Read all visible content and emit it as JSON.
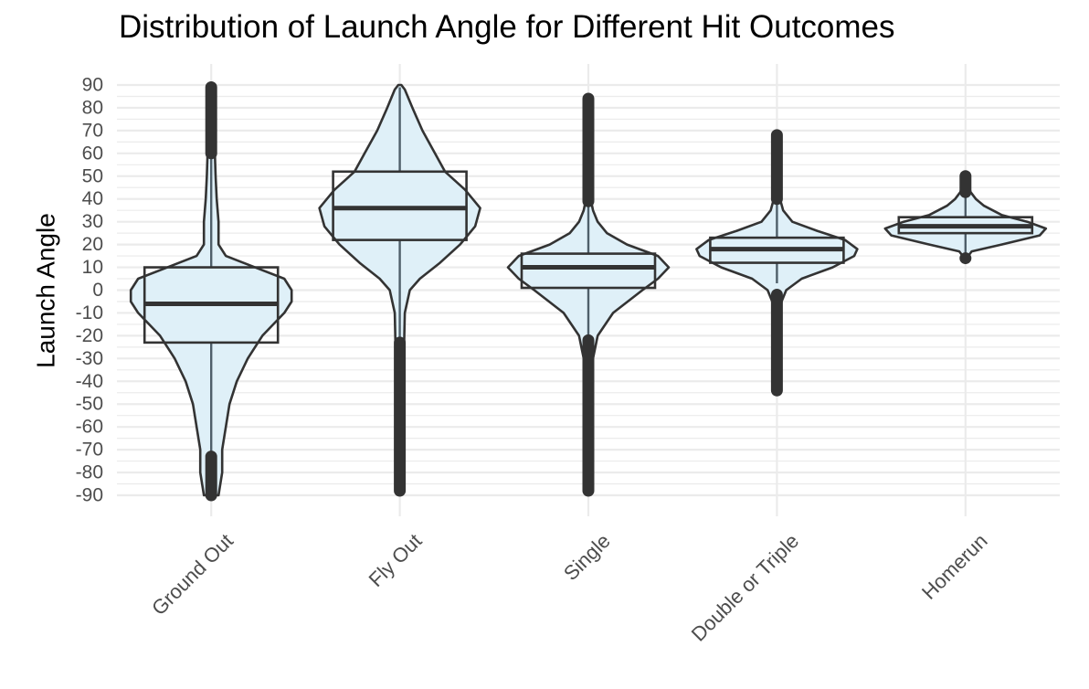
{
  "chart_data": {
    "type": "violin-box",
    "title": "Distribution of Launch Angle for Different Hit Outcomes",
    "xlabel": "",
    "ylabel": "Launch Angle",
    "ylim": [
      -90,
      90
    ],
    "yticks": [
      90,
      80,
      70,
      60,
      50,
      40,
      30,
      20,
      10,
      0,
      -10,
      -20,
      -30,
      -40,
      -50,
      -60,
      -70,
      -80,
      -90
    ],
    "grid": true,
    "colors": {
      "violin_fill": "#dff0f8",
      "outline": "#333333",
      "grid": "#ebebeb",
      "tick": "#4d4d4d"
    },
    "categories": [
      "Ground Out",
      "Fly Out",
      "Single",
      "Double or Triple",
      "Homerun"
    ],
    "boxes": [
      {
        "category": "Ground Out",
        "q1": -23,
        "median": -6,
        "q3": 10,
        "whisker_low": -72,
        "whisker_high": 60,
        "outliers_low": [
          -73,
          -90
        ],
        "outliers_high": [
          60,
          89
        ]
      },
      {
        "category": "Fly Out",
        "q1": 22,
        "median": 36,
        "q3": 52,
        "whisker_low": -22,
        "whisker_high": 89,
        "outliers_low": [
          -23,
          -88
        ],
        "outliers_high": []
      },
      {
        "category": "Single",
        "q1": 1,
        "median": 10,
        "q3": 16,
        "whisker_low": -21,
        "whisker_high": 38,
        "outliers_low": [
          -22,
          -88
        ],
        "outliers_high": [
          39,
          84
        ]
      },
      {
        "category": "Double or Triple",
        "q1": 12,
        "median": 18,
        "q3": 23,
        "whisker_low": 3,
        "whisker_high": 39,
        "outliers_low": [
          -2,
          -44
        ],
        "outliers_high": [
          40,
          68
        ]
      },
      {
        "category": "Homerun",
        "q1": 25,
        "median": 28,
        "q3": 32,
        "whisker_low": 15,
        "whisker_high": 42,
        "outliers_low": [
          14,
          14
        ],
        "outliers_high": [
          43,
          50
        ]
      }
    ],
    "violins": [
      {
        "category": "Ground Out",
        "density": [
          [
            -90,
            0.02
          ],
          [
            -80,
            0.03
          ],
          [
            -70,
            0.03
          ],
          [
            -60,
            0.04
          ],
          [
            -50,
            0.05
          ],
          [
            -40,
            0.07
          ],
          [
            -30,
            0.1
          ],
          [
            -20,
            0.14
          ],
          [
            -10,
            0.2
          ],
          [
            -5,
            0.22
          ],
          [
            0,
            0.22
          ],
          [
            5,
            0.2
          ],
          [
            10,
            0.12
          ],
          [
            15,
            0.04
          ],
          [
            20,
            0.02
          ],
          [
            30,
            0.02
          ],
          [
            40,
            0.015
          ],
          [
            50,
            0.012
          ],
          [
            60,
            0.01
          ],
          [
            70,
            0.01
          ],
          [
            80,
            0.008
          ],
          [
            90,
            0.005
          ]
        ]
      },
      {
        "category": "Fly Out",
        "density": [
          [
            -88,
            0.008
          ],
          [
            -70,
            0.008
          ],
          [
            -50,
            0.008
          ],
          [
            -30,
            0.008
          ],
          [
            -10,
            0.01
          ],
          [
            0,
            0.02
          ],
          [
            5,
            0.04
          ],
          [
            12,
            0.08
          ],
          [
            20,
            0.12
          ],
          [
            28,
            0.15
          ],
          [
            36,
            0.16
          ],
          [
            44,
            0.13
          ],
          [
            52,
            0.09
          ],
          [
            60,
            0.07
          ],
          [
            70,
            0.045
          ],
          [
            80,
            0.025
          ],
          [
            88,
            0.01
          ],
          [
            90,
            0.003
          ]
        ]
      },
      {
        "category": "Single",
        "density": [
          [
            -88,
            0.01
          ],
          [
            -60,
            0.01
          ],
          [
            -40,
            0.015
          ],
          [
            -30,
            0.03
          ],
          [
            -20,
            0.06
          ],
          [
            -10,
            0.16
          ],
          [
            0,
            0.35
          ],
          [
            5,
            0.45
          ],
          [
            10,
            0.52
          ],
          [
            15,
            0.45
          ],
          [
            20,
            0.25
          ],
          [
            25,
            0.12
          ],
          [
            30,
            0.06
          ],
          [
            35,
            0.03
          ],
          [
            40,
            0.015
          ],
          [
            60,
            0.01
          ],
          [
            84,
            0.005
          ]
        ]
      },
      {
        "category": "Double or Triple",
        "density": [
          [
            -44,
            0.005
          ],
          [
            -20,
            0.01
          ],
          [
            -10,
            0.02
          ],
          [
            -5,
            0.03
          ],
          [
            0,
            0.06
          ],
          [
            5,
            0.16
          ],
          [
            10,
            0.36
          ],
          [
            15,
            0.5
          ],
          [
            18,
            0.52
          ],
          [
            22,
            0.44
          ],
          [
            26,
            0.26
          ],
          [
            30,
            0.1
          ],
          [
            35,
            0.04
          ],
          [
            40,
            0.02
          ],
          [
            50,
            0.01
          ],
          [
            68,
            0.005
          ]
        ]
      },
      {
        "category": "Homerun",
        "density": [
          [
            14,
            0.01
          ],
          [
            17,
            0.06
          ],
          [
            20,
            0.35
          ],
          [
            24,
            0.72
          ],
          [
            27,
            0.78
          ],
          [
            30,
            0.6
          ],
          [
            33,
            0.35
          ],
          [
            37,
            0.18
          ],
          [
            40,
            0.1
          ],
          [
            43,
            0.05
          ],
          [
            46,
            0.03
          ],
          [
            50,
            0.01
          ]
        ]
      }
    ]
  }
}
